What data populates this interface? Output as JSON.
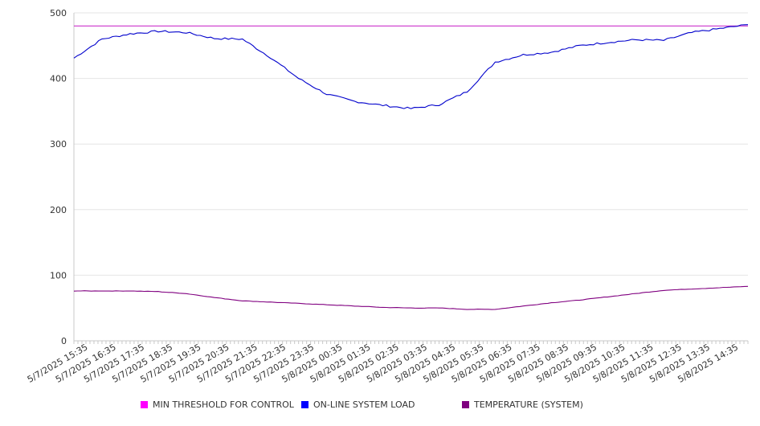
{
  "chart_data": {
    "type": "line",
    "title": "",
    "xlabel": "",
    "ylabel": "",
    "ylim": [
      0,
      500
    ],
    "yticks": [
      0,
      100,
      200,
      300,
      400,
      500
    ],
    "grid": true,
    "legend_position": "bottom",
    "x_tick_labels": [
      "5/7/2025 15:35",
      "5/7/2025 16:35",
      "5/7/2025 17:35",
      "5/7/2025 18:35",
      "5/7/2025 19:35",
      "5/7/2025 20:35",
      "5/7/2025 21:35",
      "5/7/2025 22:35",
      "5/7/2025 23:35",
      "5/8/2025 00:35",
      "5/8/2025 01:35",
      "5/8/2025 02:35",
      "5/8/2025 03:35",
      "5/8/2025 04:35",
      "5/8/2025 05:35",
      "5/8/2025 06:35",
      "5/8/2025 07:35",
      "5/8/2025 08:35",
      "5/8/2025 09:35",
      "5/8/2025 10:35",
      "5/8/2025 11:35",
      "5/8/2025 12:35",
      "5/8/2025 13:35",
      "5/8/2025 14:35"
    ],
    "series": [
      {
        "name": "MIN THRESHOLD FOR CONTROL",
        "color": "#cc33cc",
        "values": [
          480,
          480,
          480,
          480,
          480,
          480,
          480,
          480,
          480,
          480,
          480,
          480,
          480,
          480,
          480,
          480,
          480,
          480,
          480,
          480,
          480,
          480,
          480,
          480,
          480
        ]
      },
      {
        "name": "ON-LINE SYSTEM LOAD",
        "color": "#0000cc",
        "values": [
          431,
          460,
          468,
          472,
          470,
          461,
          460,
          432,
          400,
          376,
          365,
          359,
          354,
          360,
          380,
          425,
          436,
          440,
          450,
          455,
          459,
          458,
          470,
          476,
          482
        ]
      },
      {
        "name": "TEMPERATURE (SYSTEM)",
        "color": "#800080",
        "values": [
          76,
          76,
          76,
          75,
          72,
          66,
          61,
          59,
          57,
          55,
          53,
          51,
          50,
          50,
          48,
          48,
          53,
          58,
          62,
          67,
          72,
          77,
          79,
          81,
          83
        ]
      }
    ]
  }
}
